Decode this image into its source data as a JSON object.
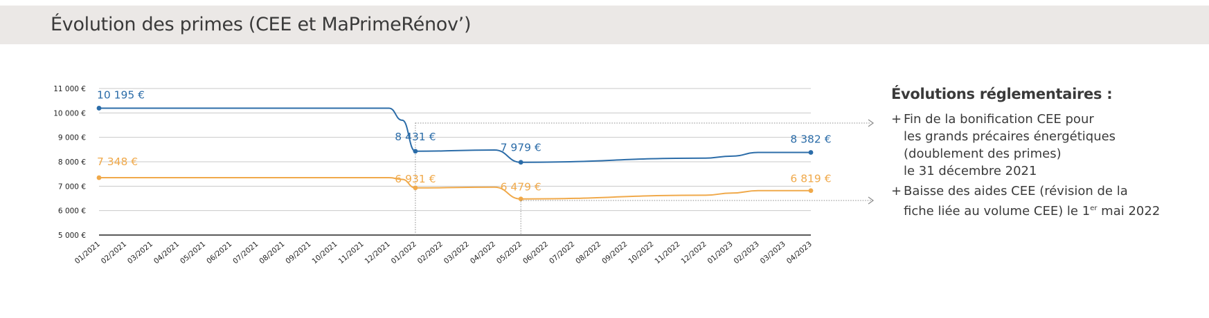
{
  "header": {
    "title": "Évolution des primes (CEE et MaPrimeRénov’)"
  },
  "colors": {
    "blue": "#2b6ca8",
    "orange": "#f0a94a",
    "grid": "#c8c8c8",
    "axis": "#222222",
    "guide": "#8a8a8a"
  },
  "chart_data": {
    "type": "line",
    "title": "Évolution des primes (CEE et MaPrimeRénov’)",
    "ylim": [
      5000,
      11000
    ],
    "yticks": [
      5000,
      6000,
      7000,
      8000,
      9000,
      10000,
      11000
    ],
    "ytick_labels": [
      "5 000 €",
      "6 000 €",
      "7 000 €",
      "8 000 €",
      "9 000 €",
      "10 000 €",
      "11 000 €"
    ],
    "categories": [
      "01/2021",
      "02/2021",
      "03/2021",
      "04/2021",
      "05/2021",
      "06/2021",
      "07/2021",
      "08/2021",
      "09/2021",
      "10/2021",
      "11/2021",
      "12/2021",
      "01/2022",
      "02/2022",
      "03/2022",
      "04/2022",
      "05/2022",
      "06/2022",
      "07/2022",
      "08/2022",
      "09/2022",
      "10/2022",
      "11/2022",
      "12/2022",
      "01/2023",
      "02/2023",
      "03/2023",
      "04/2023"
    ],
    "series": [
      {
        "name": "blue",
        "color": "#2b6ca8",
        "points": [
          [
            0,
            10195
          ],
          [
            11,
            10195
          ],
          [
            11.5,
            9700
          ],
          [
            12,
            8431
          ],
          [
            15,
            8480
          ],
          [
            16,
            7979
          ],
          [
            23,
            8150
          ],
          [
            24,
            8230
          ],
          [
            25,
            8382
          ],
          [
            27,
            8382
          ]
        ],
        "markers": [
          {
            "i": 0,
            "v": 10195,
            "label": "10 195 €"
          },
          {
            "i": 12,
            "v": 8431,
            "label": "8 431 €"
          },
          {
            "i": 16,
            "v": 7979,
            "label": "7 979 €"
          },
          {
            "i": 27,
            "v": 8382,
            "label": "8 382 €"
          }
        ]
      },
      {
        "name": "orange",
        "color": "#f0a94a",
        "points": [
          [
            0,
            7348
          ],
          [
            11,
            7348
          ],
          [
            11.5,
            7280
          ],
          [
            12,
            6931
          ],
          [
            15,
            6960
          ],
          [
            16,
            6479
          ],
          [
            23,
            6630
          ],
          [
            24,
            6720
          ],
          [
            25,
            6819
          ],
          [
            27,
            6819
          ]
        ],
        "markers": [
          {
            "i": 0,
            "v": 7348,
            "label": "7 348 €"
          },
          {
            "i": 12,
            "v": 6931,
            "label": "6 931 €"
          },
          {
            "i": 16,
            "v": 6479,
            "label": "6 479 €"
          },
          {
            "i": 27,
            "v": 6819,
            "label": "6 819 €"
          }
        ]
      }
    ],
    "guides": [
      {
        "i": 12,
        "from_value": 9600,
        "note": "Fin de la bonification CEE"
      },
      {
        "i": 16,
        "from_value": 6479,
        "note": "Baisse des aides CEE"
      }
    ]
  },
  "side": {
    "title": "Évolutions réglementaires :",
    "plus": "+",
    "item1": {
      "lines": [
        "Fin de la bonification CEE pour",
        "les grands précaires énergétiques",
        "(doublement des primes)",
        "le 31 décembre 2021"
      ]
    },
    "item2": {
      "line1": "Baisse des aides CEE (révision de la",
      "line2_before": "fiche liée au volume CEE) le 1",
      "sup": "er",
      "line2_after": " mai 2022"
    }
  }
}
